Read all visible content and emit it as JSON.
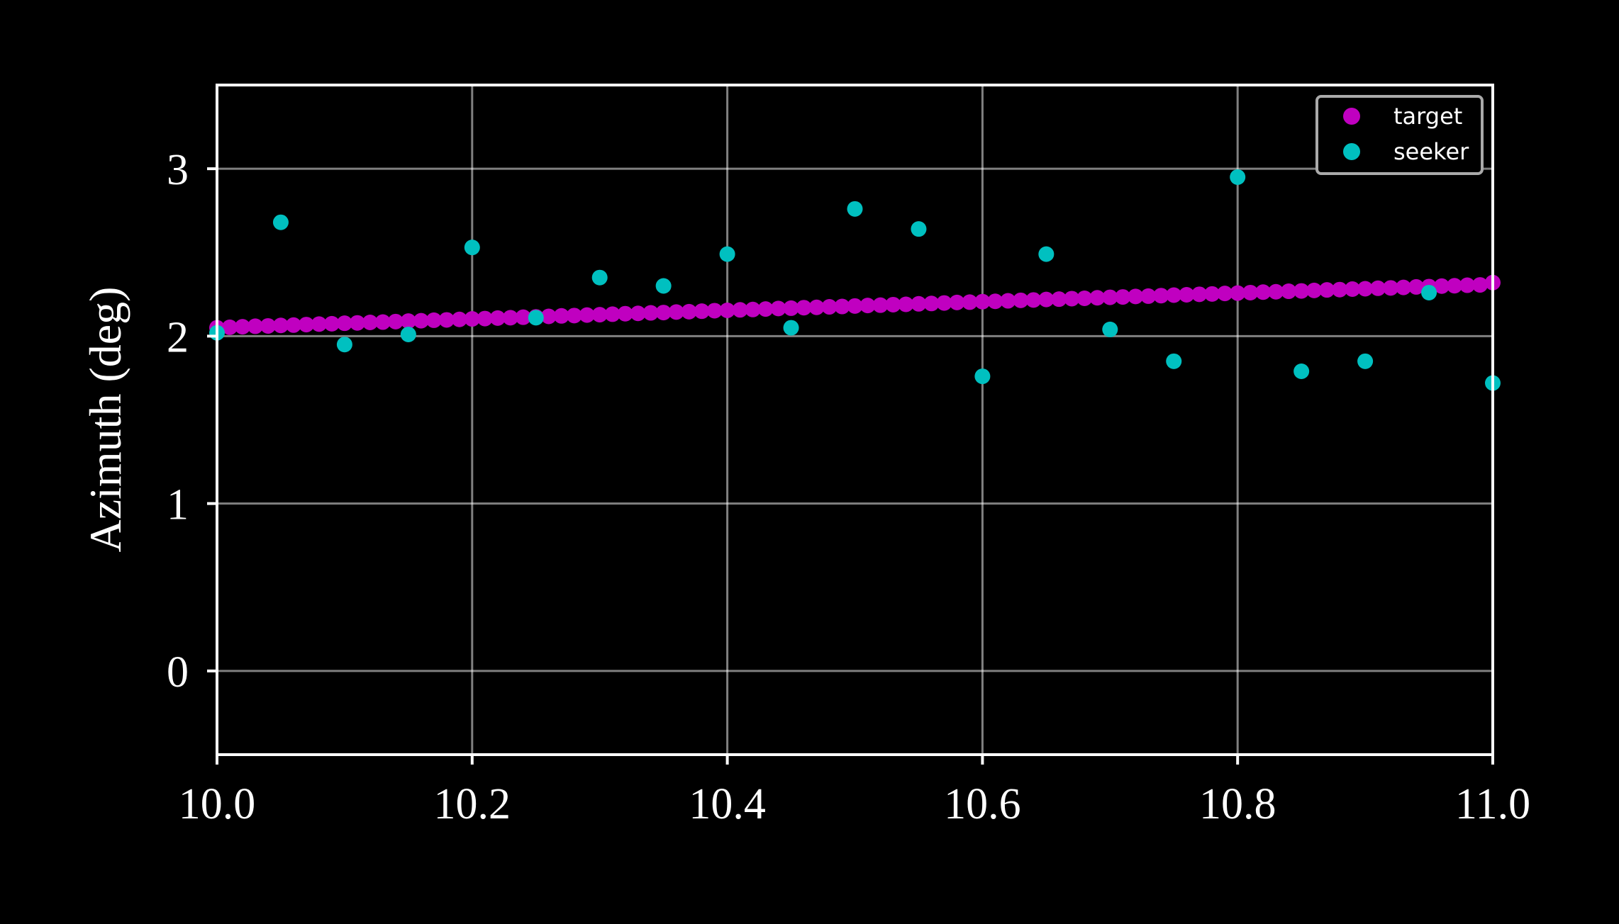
{
  "chart_data": {
    "type": "scatter",
    "title": "",
    "xlabel": "",
    "ylabel": "Azimuth (deg)",
    "xlim": [
      10.0,
      11.0
    ],
    "ylim": [
      -0.5,
      3.5
    ],
    "xticks": [
      10.0,
      10.2,
      10.4,
      10.6,
      10.8,
      11.0
    ],
    "xtick_labels": [
      "10.0",
      "10.2",
      "10.4",
      "10.6",
      "10.8",
      "11.0"
    ],
    "yticks": [
      0,
      1,
      2,
      3
    ],
    "ytick_labels": [
      "0",
      "1",
      "2",
      "3"
    ],
    "grid": true,
    "legend_position": "top-right",
    "background": "#000000",
    "series": [
      {
        "name": "target",
        "color": "#c000c0",
        "x_start": 10.0,
        "x_step": 0.01,
        "values": [
          2.05,
          2.053,
          2.056,
          2.059,
          2.061,
          2.064,
          2.066,
          2.069,
          2.072,
          2.074,
          2.077,
          2.079,
          2.082,
          2.084,
          2.087,
          2.09,
          2.092,
          2.095,
          2.097,
          2.1,
          2.103,
          2.105,
          2.108,
          2.11,
          2.113,
          2.115,
          2.118,
          2.121,
          2.123,
          2.126,
          2.128,
          2.131,
          2.134,
          2.136,
          2.139,
          2.141,
          2.144,
          2.146,
          2.149,
          2.152,
          2.154,
          2.157,
          2.159,
          2.162,
          2.165,
          2.167,
          2.17,
          2.172,
          2.175,
          2.177,
          2.18,
          2.183,
          2.185,
          2.188,
          2.19,
          2.193,
          2.195,
          2.198,
          2.201,
          2.203,
          2.206,
          2.208,
          2.211,
          2.214,
          2.216,
          2.219,
          2.221,
          2.224,
          2.226,
          2.229,
          2.232,
          2.234,
          2.237,
          2.239,
          2.242,
          2.245,
          2.247,
          2.25,
          2.252,
          2.255,
          2.257,
          2.26,
          2.263,
          2.265,
          2.268,
          2.27,
          2.273,
          2.276,
          2.278,
          2.281,
          2.283,
          2.286,
          2.288,
          2.291,
          2.294,
          2.296,
          2.299,
          2.301,
          2.304,
          2.306,
          2.32
        ]
      },
      {
        "name": "seeker",
        "color": "#00c0c0",
        "x": [
          10.0,
          10.05,
          10.1,
          10.15,
          10.2,
          10.25,
          10.3,
          10.35,
          10.4,
          10.45,
          10.5,
          10.55,
          10.6,
          10.65,
          10.7,
          10.75,
          10.8,
          10.85,
          10.9,
          10.95,
          11.0
        ],
        "values": [
          2.02,
          2.68,
          1.95,
          2.01,
          2.53,
          2.11,
          2.35,
          2.3,
          2.49,
          2.05,
          2.76,
          2.64,
          1.76,
          2.49,
          2.04,
          1.85,
          2.95,
          1.79,
          1.85,
          2.26,
          1.72
        ]
      }
    ]
  }
}
